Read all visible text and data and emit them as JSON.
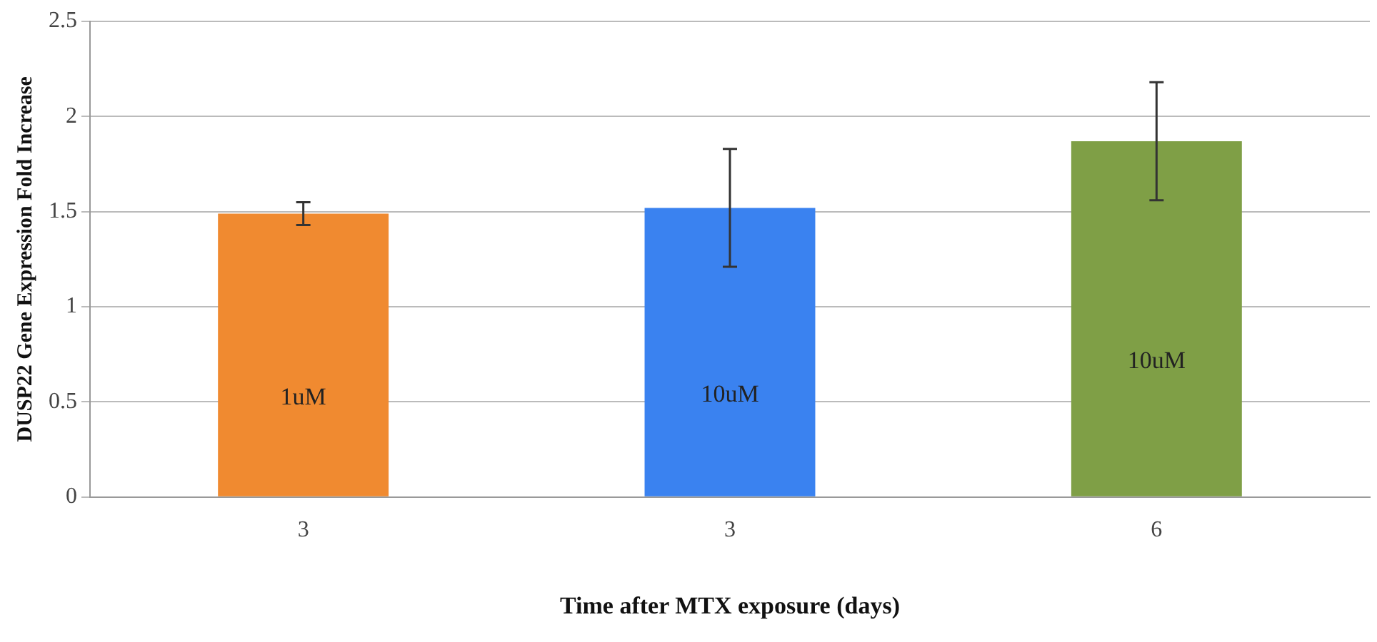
{
  "chart_data": {
    "type": "bar",
    "xlabel": "Time after MTX exposure (days)",
    "ylabel": "DUSP22 Gene Expression Fold Increase",
    "categories": [
      "3",
      "3",
      "6"
    ],
    "values": [
      1.49,
      1.52,
      1.87
    ],
    "errors": [
      0.06,
      0.31,
      0.31
    ],
    "colors": [
      "#f08a30",
      "#3a82f0",
      "#7f9f46"
    ],
    "annotations": [
      "1uM",
      "10uM",
      "10uM"
    ],
    "ylim": [
      0,
      2.5
    ],
    "yticks": [
      0,
      0.5,
      1,
      1.5,
      2,
      2.5
    ],
    "grid": "y"
  }
}
